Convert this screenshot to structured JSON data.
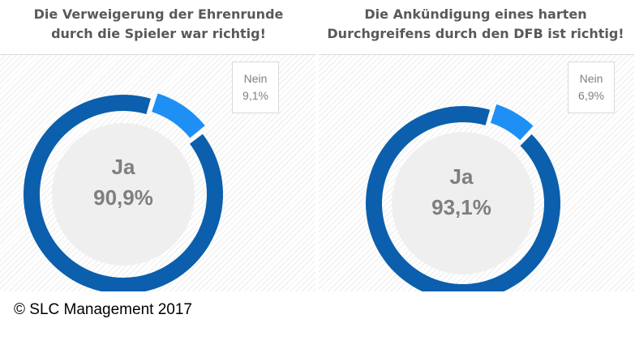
{
  "chart_data": [
    {
      "type": "pie",
      "title_lines": [
        "Die Verweigerung der Ehrenrunde",
        "durch die Spieler war richtig!"
      ],
      "slices": [
        {
          "label": "Ja",
          "value": 90.9,
          "text": "90,9%",
          "color": "#0b5fad"
        },
        {
          "label": "Nein",
          "value": 9.1,
          "text": "9,1%",
          "color": "#1e8ff5"
        }
      ]
    },
    {
      "type": "pie",
      "title_lines": [
        "Die Ankündigung eines harten",
        "Durchgreifens durch den DFB ist richtig!"
      ],
      "slices": [
        {
          "label": "Ja",
          "value": 93.1,
          "text": "93,1%",
          "color": "#0b5fad"
        },
        {
          "label": "Nein",
          "value": 6.9,
          "text": "6,9%",
          "color": "#1e8ff5"
        }
      ]
    }
  ],
  "footer": {
    "copyright": "© SLC Management 2017"
  }
}
